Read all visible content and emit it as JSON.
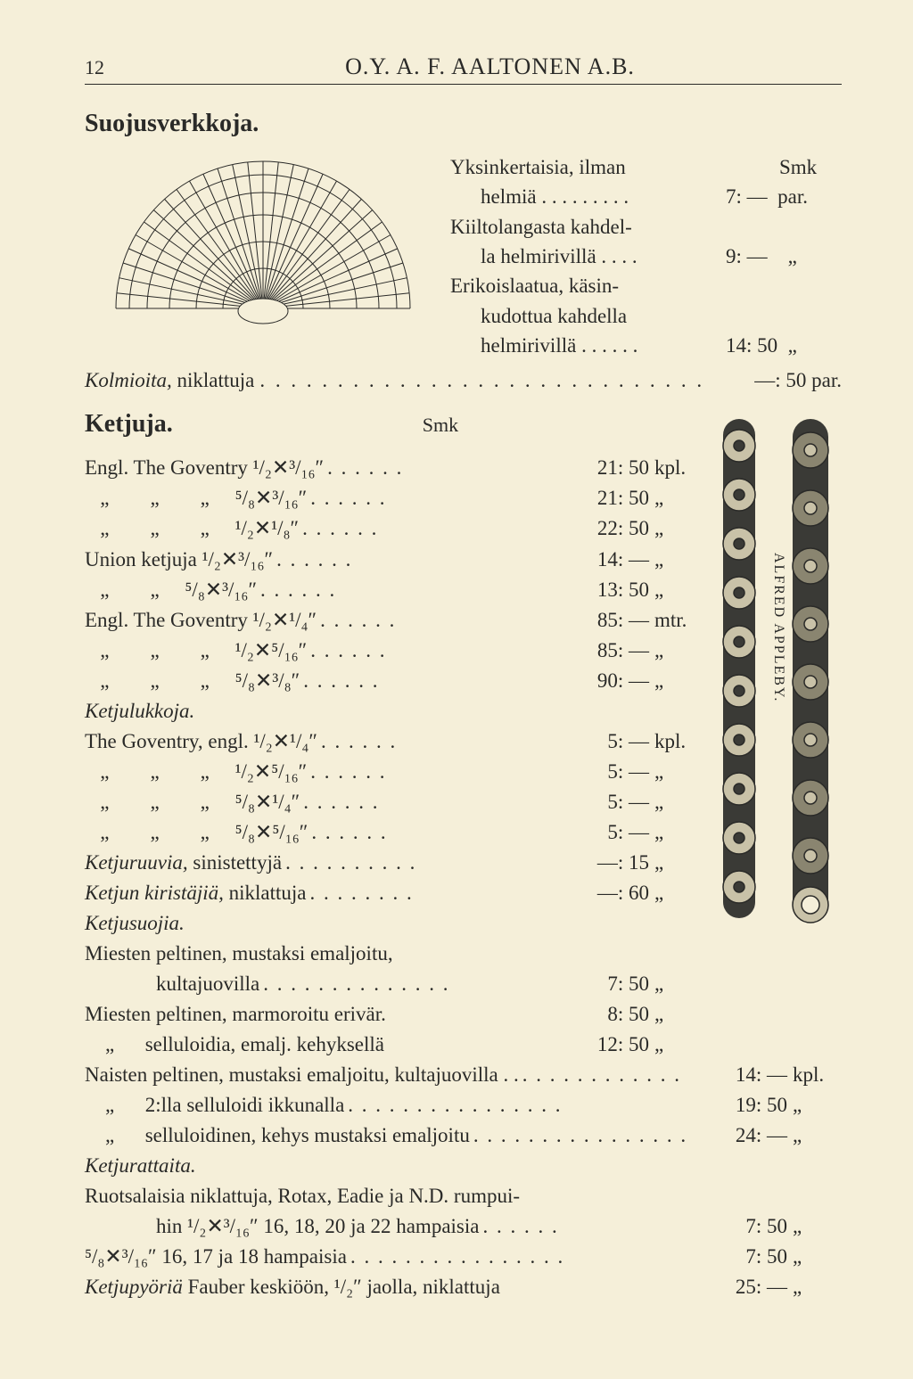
{
  "page_number": "12",
  "company_name": "O.Y. A. F. AALTONEN A.B.",
  "section1_title": "Suojusverkkoja.",
  "suojus_smk": "Smk",
  "suojus_items": [
    {
      "line1": "Yksinkertaisia, ilman",
      "line2": "helmiä",
      "price": "7: —",
      "unit": "par."
    },
    {
      "line1": "Kiiltolangasta kahdel-",
      "line2": "la helmirivillä",
      "price": "9: —",
      "unit": "„"
    },
    {
      "line1": "Erikoislaatua, käsin-",
      "line2": "kudottua kahdella",
      "line3": "helmirivillä",
      "price": "14: 50",
      "unit": "„"
    }
  ],
  "kolmio_label": "Kolmioita,",
  "kolmio_rest": " niklattuja",
  "kolmio_price": "—: 50 par.",
  "section2_title": "Ketjuja.",
  "smk2": "Smk",
  "ketjuja_rows": [
    {
      "desc": "Engl. The Goventry ¹/₂✕³/₁₆″",
      "price": "21: 50",
      "unit": "kpl."
    },
    {
      "desc": "   „        „        „     ⁵/₈✕³/₁₆″",
      "price": "21: 50",
      "unit": "„"
    },
    {
      "desc": "   „        „        „     ¹/₂✕¹/₈″",
      "price": "22: 50",
      "unit": "„"
    },
    {
      "desc": "Union ketjuja ¹/₂✕³/₁₆″",
      "price": "14: —",
      "unit": "„"
    },
    {
      "desc": "   „        „     ⁵/₈✕³/₁₆″",
      "price": "13: 50",
      "unit": "„"
    },
    {
      "desc": "Engl. The Goventry ¹/₂✕¹/₄″",
      "price": "85: —",
      "unit": "mtr."
    },
    {
      "desc": "   „        „        „     ¹/₂✕⁵/₁₆″",
      "price": "85: —",
      "unit": "„"
    },
    {
      "desc": "   „        „        „     ⁵/₈✕³/₈″",
      "price": "90: —",
      "unit": "„"
    }
  ],
  "ketjulukkoja_head": "Ketjulukkoja.",
  "ketjulukkoja_rows": [
    {
      "desc": "The Goventry, engl. ¹/₂✕¹/₄″",
      "price": "5: —",
      "unit": "kpl."
    },
    {
      "desc": "   „        „        „     ¹/₂✕⁵/₁₆″",
      "price": "5: —",
      "unit": "„"
    },
    {
      "desc": "   „        „        „     ⁵/₈✕¹/₄″",
      "price": "5: —",
      "unit": "„"
    },
    {
      "desc": "   „        „        „     ⁵/₈✕⁵/₁₆″",
      "price": "5: —",
      "unit": "„"
    }
  ],
  "ketjuruuvia_label": "Ketjuruuvia,",
  "ketjuruuvia_rest": " sinistettyjä",
  "ketjuruuvia_price": "—: 15",
  "ketjuruuvia_unit": "„",
  "ketjun_kir_label": "Ketjun kiristäjiä,",
  "ketjun_kir_rest": " niklattuja",
  "ketjun_kir_price": "—: 60",
  "ketjun_kir_unit": "„",
  "ketjusuojia_head": "Ketjusuojia.",
  "ketjusuojia_rows": [
    {
      "line1": "Miesten peltinen, mustaksi emaljoitu,",
      "line2": "kultajuovilla",
      "price": "7: 50",
      "unit": "„"
    },
    {
      "line1": "Miesten peltinen, marmoroitu erivär.",
      "price": "8: 50",
      "unit": "„"
    },
    {
      "line1": "    „      selluloidia, emalj. kehyksellä",
      "price": "12: 50",
      "unit": "„"
    }
  ],
  "wide_rows": [
    {
      "desc": "Naisten peltinen, mustaksi emaljoitu, kultajuovilla . .",
      "price": "14: —",
      "unit": "kpl."
    },
    {
      "desc": "    „      2:lla selluloidi ikkunalla",
      "price": "19: 50",
      "unit": "„"
    },
    {
      "desc": "    „      selluloidinen, kehys mustaksi emaljoitu",
      "price": "24: —",
      "unit": "„"
    }
  ],
  "ketjurattaita_head": "Ketjurattaita.",
  "ketjurattaita_rows": [
    {
      "line1": "Ruotsalaisia niklattuja, Rotax, Eadie ja N.D. rumpui-",
      "line2": "hin ¹/₂✕³/₁₆″ 16, 18, 20 ja 22 hampaisia",
      "price": "7: 50",
      "unit": "„"
    },
    {
      "line1": "⁵/₈✕³/₁₆″ 16, 17 ja 18 hampaisia",
      "price": "7: 50",
      "unit": "„"
    }
  ],
  "ketjupyoria_label": "Ketjupyöriä",
  "ketjupyoria_rest": " Fauber keskiöön, ¹/₂″ jaolla, niklattuja",
  "ketjupyoria_price": "25: —",
  "ketjupyoria_unit": "„",
  "chain_label": "ALFRED APPLEBY.",
  "colors": {
    "bg": "#f5efd9",
    "text": "#2a2a28",
    "chain_light": "#c9c2a8",
    "chain_dark": "#3a3a36"
  }
}
